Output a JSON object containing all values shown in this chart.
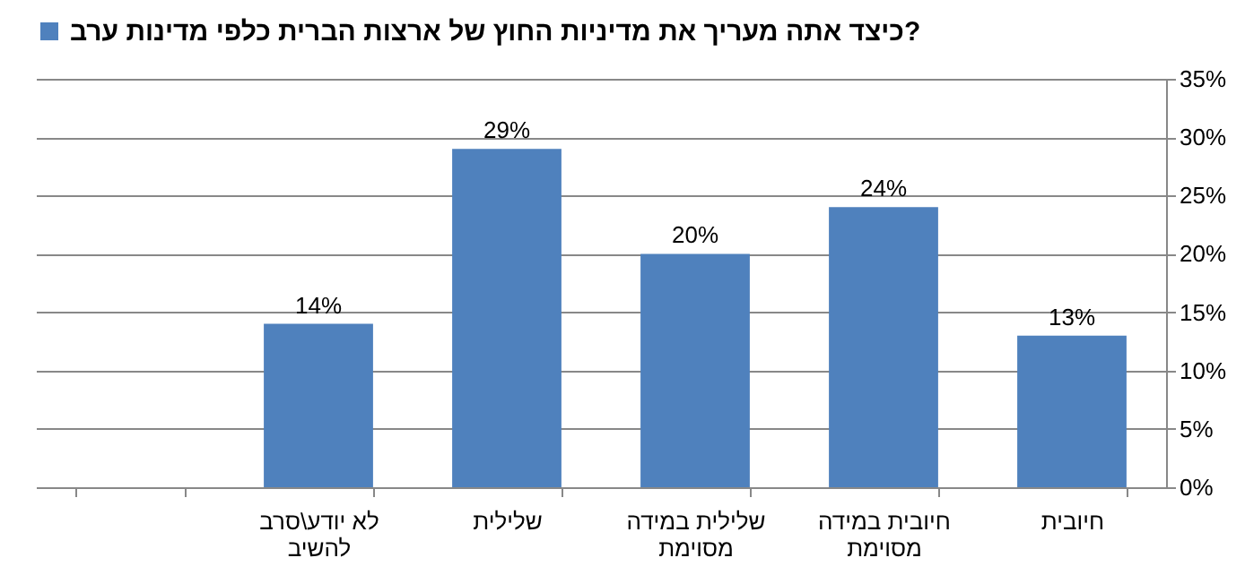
{
  "chart_data": {
    "type": "bar",
    "categories": [
      null,
      "לא יודע\\סרב להשיב",
      "שלילית",
      "שלילית במידה מסוימת",
      "חיובית במידה מסוימת",
      "חיובית"
    ],
    "series": [
      {
        "name": "כיצד אתה מעריך את מדיניות החוץ של ארצות הברית כלפי מדינות ערב?",
        "color": "#4f81bd",
        "values": [
          null,
          14,
          29,
          20,
          24,
          13
        ],
        "value_labels": [
          null,
          "14%",
          "29%",
          "20%",
          "24%",
          "13%"
        ]
      }
    ],
    "ylim": [
      0,
      35
    ],
    "yticks": [
      {
        "value": 0,
        "label": "0%"
      },
      {
        "value": 5,
        "label": "5%"
      },
      {
        "value": 10,
        "label": "10%"
      },
      {
        "value": 15,
        "label": "15%"
      },
      {
        "value": 20,
        "label": "20%"
      },
      {
        "value": 25,
        "label": "25%"
      },
      {
        "value": 30,
        "label": "30%"
      },
      {
        "value": 35,
        "label": "35%"
      }
    ],
    "grid": "y",
    "legend": "top"
  }
}
